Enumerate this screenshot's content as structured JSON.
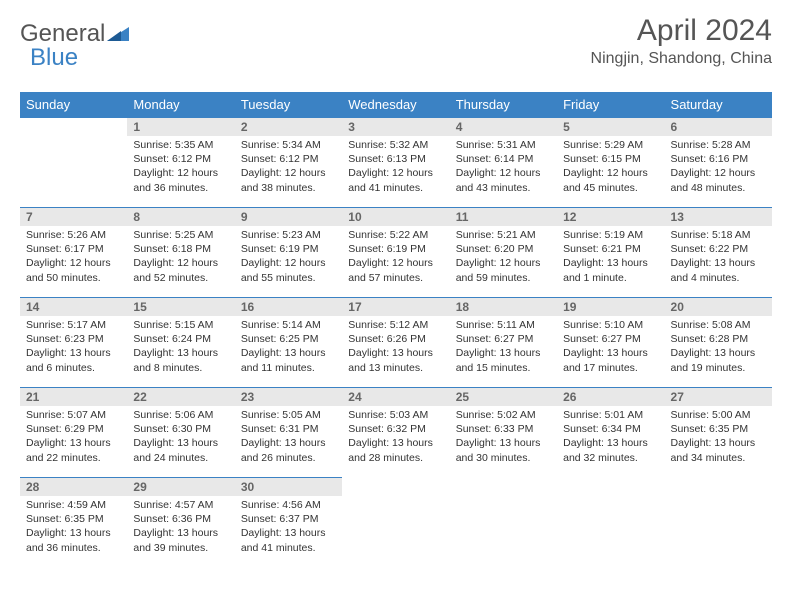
{
  "logo": {
    "general": "General",
    "blue": "Blue"
  },
  "header": {
    "title": "April 2024",
    "location": "Ningjin, Shandong, China"
  },
  "colors": {
    "brand": "#3b82c4",
    "daynum_bg": "#e8e8e8",
    "daynum_fg": "#666666",
    "text": "#333333",
    "header_text": "#555555"
  },
  "daynames": [
    "Sunday",
    "Monday",
    "Tuesday",
    "Wednesday",
    "Thursday",
    "Friday",
    "Saturday"
  ],
  "weeks": [
    [
      null,
      {
        "n": "1",
        "sr": "Sunrise: 5:35 AM",
        "ss": "Sunset: 6:12 PM",
        "d1": "Daylight: 12 hours",
        "d2": "and 36 minutes."
      },
      {
        "n": "2",
        "sr": "Sunrise: 5:34 AM",
        "ss": "Sunset: 6:12 PM",
        "d1": "Daylight: 12 hours",
        "d2": "and 38 minutes."
      },
      {
        "n": "3",
        "sr": "Sunrise: 5:32 AM",
        "ss": "Sunset: 6:13 PM",
        "d1": "Daylight: 12 hours",
        "d2": "and 41 minutes."
      },
      {
        "n": "4",
        "sr": "Sunrise: 5:31 AM",
        "ss": "Sunset: 6:14 PM",
        "d1": "Daylight: 12 hours",
        "d2": "and 43 minutes."
      },
      {
        "n": "5",
        "sr": "Sunrise: 5:29 AM",
        "ss": "Sunset: 6:15 PM",
        "d1": "Daylight: 12 hours",
        "d2": "and 45 minutes."
      },
      {
        "n": "6",
        "sr": "Sunrise: 5:28 AM",
        "ss": "Sunset: 6:16 PM",
        "d1": "Daylight: 12 hours",
        "d2": "and 48 minutes."
      }
    ],
    [
      {
        "n": "7",
        "sr": "Sunrise: 5:26 AM",
        "ss": "Sunset: 6:17 PM",
        "d1": "Daylight: 12 hours",
        "d2": "and 50 minutes."
      },
      {
        "n": "8",
        "sr": "Sunrise: 5:25 AM",
        "ss": "Sunset: 6:18 PM",
        "d1": "Daylight: 12 hours",
        "d2": "and 52 minutes."
      },
      {
        "n": "9",
        "sr": "Sunrise: 5:23 AM",
        "ss": "Sunset: 6:19 PM",
        "d1": "Daylight: 12 hours",
        "d2": "and 55 minutes."
      },
      {
        "n": "10",
        "sr": "Sunrise: 5:22 AM",
        "ss": "Sunset: 6:19 PM",
        "d1": "Daylight: 12 hours",
        "d2": "and 57 minutes."
      },
      {
        "n": "11",
        "sr": "Sunrise: 5:21 AM",
        "ss": "Sunset: 6:20 PM",
        "d1": "Daylight: 12 hours",
        "d2": "and 59 minutes."
      },
      {
        "n": "12",
        "sr": "Sunrise: 5:19 AM",
        "ss": "Sunset: 6:21 PM",
        "d1": "Daylight: 13 hours",
        "d2": "and 1 minute."
      },
      {
        "n": "13",
        "sr": "Sunrise: 5:18 AM",
        "ss": "Sunset: 6:22 PM",
        "d1": "Daylight: 13 hours",
        "d2": "and 4 minutes."
      }
    ],
    [
      {
        "n": "14",
        "sr": "Sunrise: 5:17 AM",
        "ss": "Sunset: 6:23 PM",
        "d1": "Daylight: 13 hours",
        "d2": "and 6 minutes."
      },
      {
        "n": "15",
        "sr": "Sunrise: 5:15 AM",
        "ss": "Sunset: 6:24 PM",
        "d1": "Daylight: 13 hours",
        "d2": "and 8 minutes."
      },
      {
        "n": "16",
        "sr": "Sunrise: 5:14 AM",
        "ss": "Sunset: 6:25 PM",
        "d1": "Daylight: 13 hours",
        "d2": "and 11 minutes."
      },
      {
        "n": "17",
        "sr": "Sunrise: 5:12 AM",
        "ss": "Sunset: 6:26 PM",
        "d1": "Daylight: 13 hours",
        "d2": "and 13 minutes."
      },
      {
        "n": "18",
        "sr": "Sunrise: 5:11 AM",
        "ss": "Sunset: 6:27 PM",
        "d1": "Daylight: 13 hours",
        "d2": "and 15 minutes."
      },
      {
        "n": "19",
        "sr": "Sunrise: 5:10 AM",
        "ss": "Sunset: 6:27 PM",
        "d1": "Daylight: 13 hours",
        "d2": "and 17 minutes."
      },
      {
        "n": "20",
        "sr": "Sunrise: 5:08 AM",
        "ss": "Sunset: 6:28 PM",
        "d1": "Daylight: 13 hours",
        "d2": "and 19 minutes."
      }
    ],
    [
      {
        "n": "21",
        "sr": "Sunrise: 5:07 AM",
        "ss": "Sunset: 6:29 PM",
        "d1": "Daylight: 13 hours",
        "d2": "and 22 minutes."
      },
      {
        "n": "22",
        "sr": "Sunrise: 5:06 AM",
        "ss": "Sunset: 6:30 PM",
        "d1": "Daylight: 13 hours",
        "d2": "and 24 minutes."
      },
      {
        "n": "23",
        "sr": "Sunrise: 5:05 AM",
        "ss": "Sunset: 6:31 PM",
        "d1": "Daylight: 13 hours",
        "d2": "and 26 minutes."
      },
      {
        "n": "24",
        "sr": "Sunrise: 5:03 AM",
        "ss": "Sunset: 6:32 PM",
        "d1": "Daylight: 13 hours",
        "d2": "and 28 minutes."
      },
      {
        "n": "25",
        "sr": "Sunrise: 5:02 AM",
        "ss": "Sunset: 6:33 PM",
        "d1": "Daylight: 13 hours",
        "d2": "and 30 minutes."
      },
      {
        "n": "26",
        "sr": "Sunrise: 5:01 AM",
        "ss": "Sunset: 6:34 PM",
        "d1": "Daylight: 13 hours",
        "d2": "and 32 minutes."
      },
      {
        "n": "27",
        "sr": "Sunrise: 5:00 AM",
        "ss": "Sunset: 6:35 PM",
        "d1": "Daylight: 13 hours",
        "d2": "and 34 minutes."
      }
    ],
    [
      {
        "n": "28",
        "sr": "Sunrise: 4:59 AM",
        "ss": "Sunset: 6:35 PM",
        "d1": "Daylight: 13 hours",
        "d2": "and 36 minutes."
      },
      {
        "n": "29",
        "sr": "Sunrise: 4:57 AM",
        "ss": "Sunset: 6:36 PM",
        "d1": "Daylight: 13 hours",
        "d2": "and 39 minutes."
      },
      {
        "n": "30",
        "sr": "Sunrise: 4:56 AM",
        "ss": "Sunset: 6:37 PM",
        "d1": "Daylight: 13 hours",
        "d2": "and 41 minutes."
      },
      null,
      null,
      null,
      null
    ]
  ]
}
